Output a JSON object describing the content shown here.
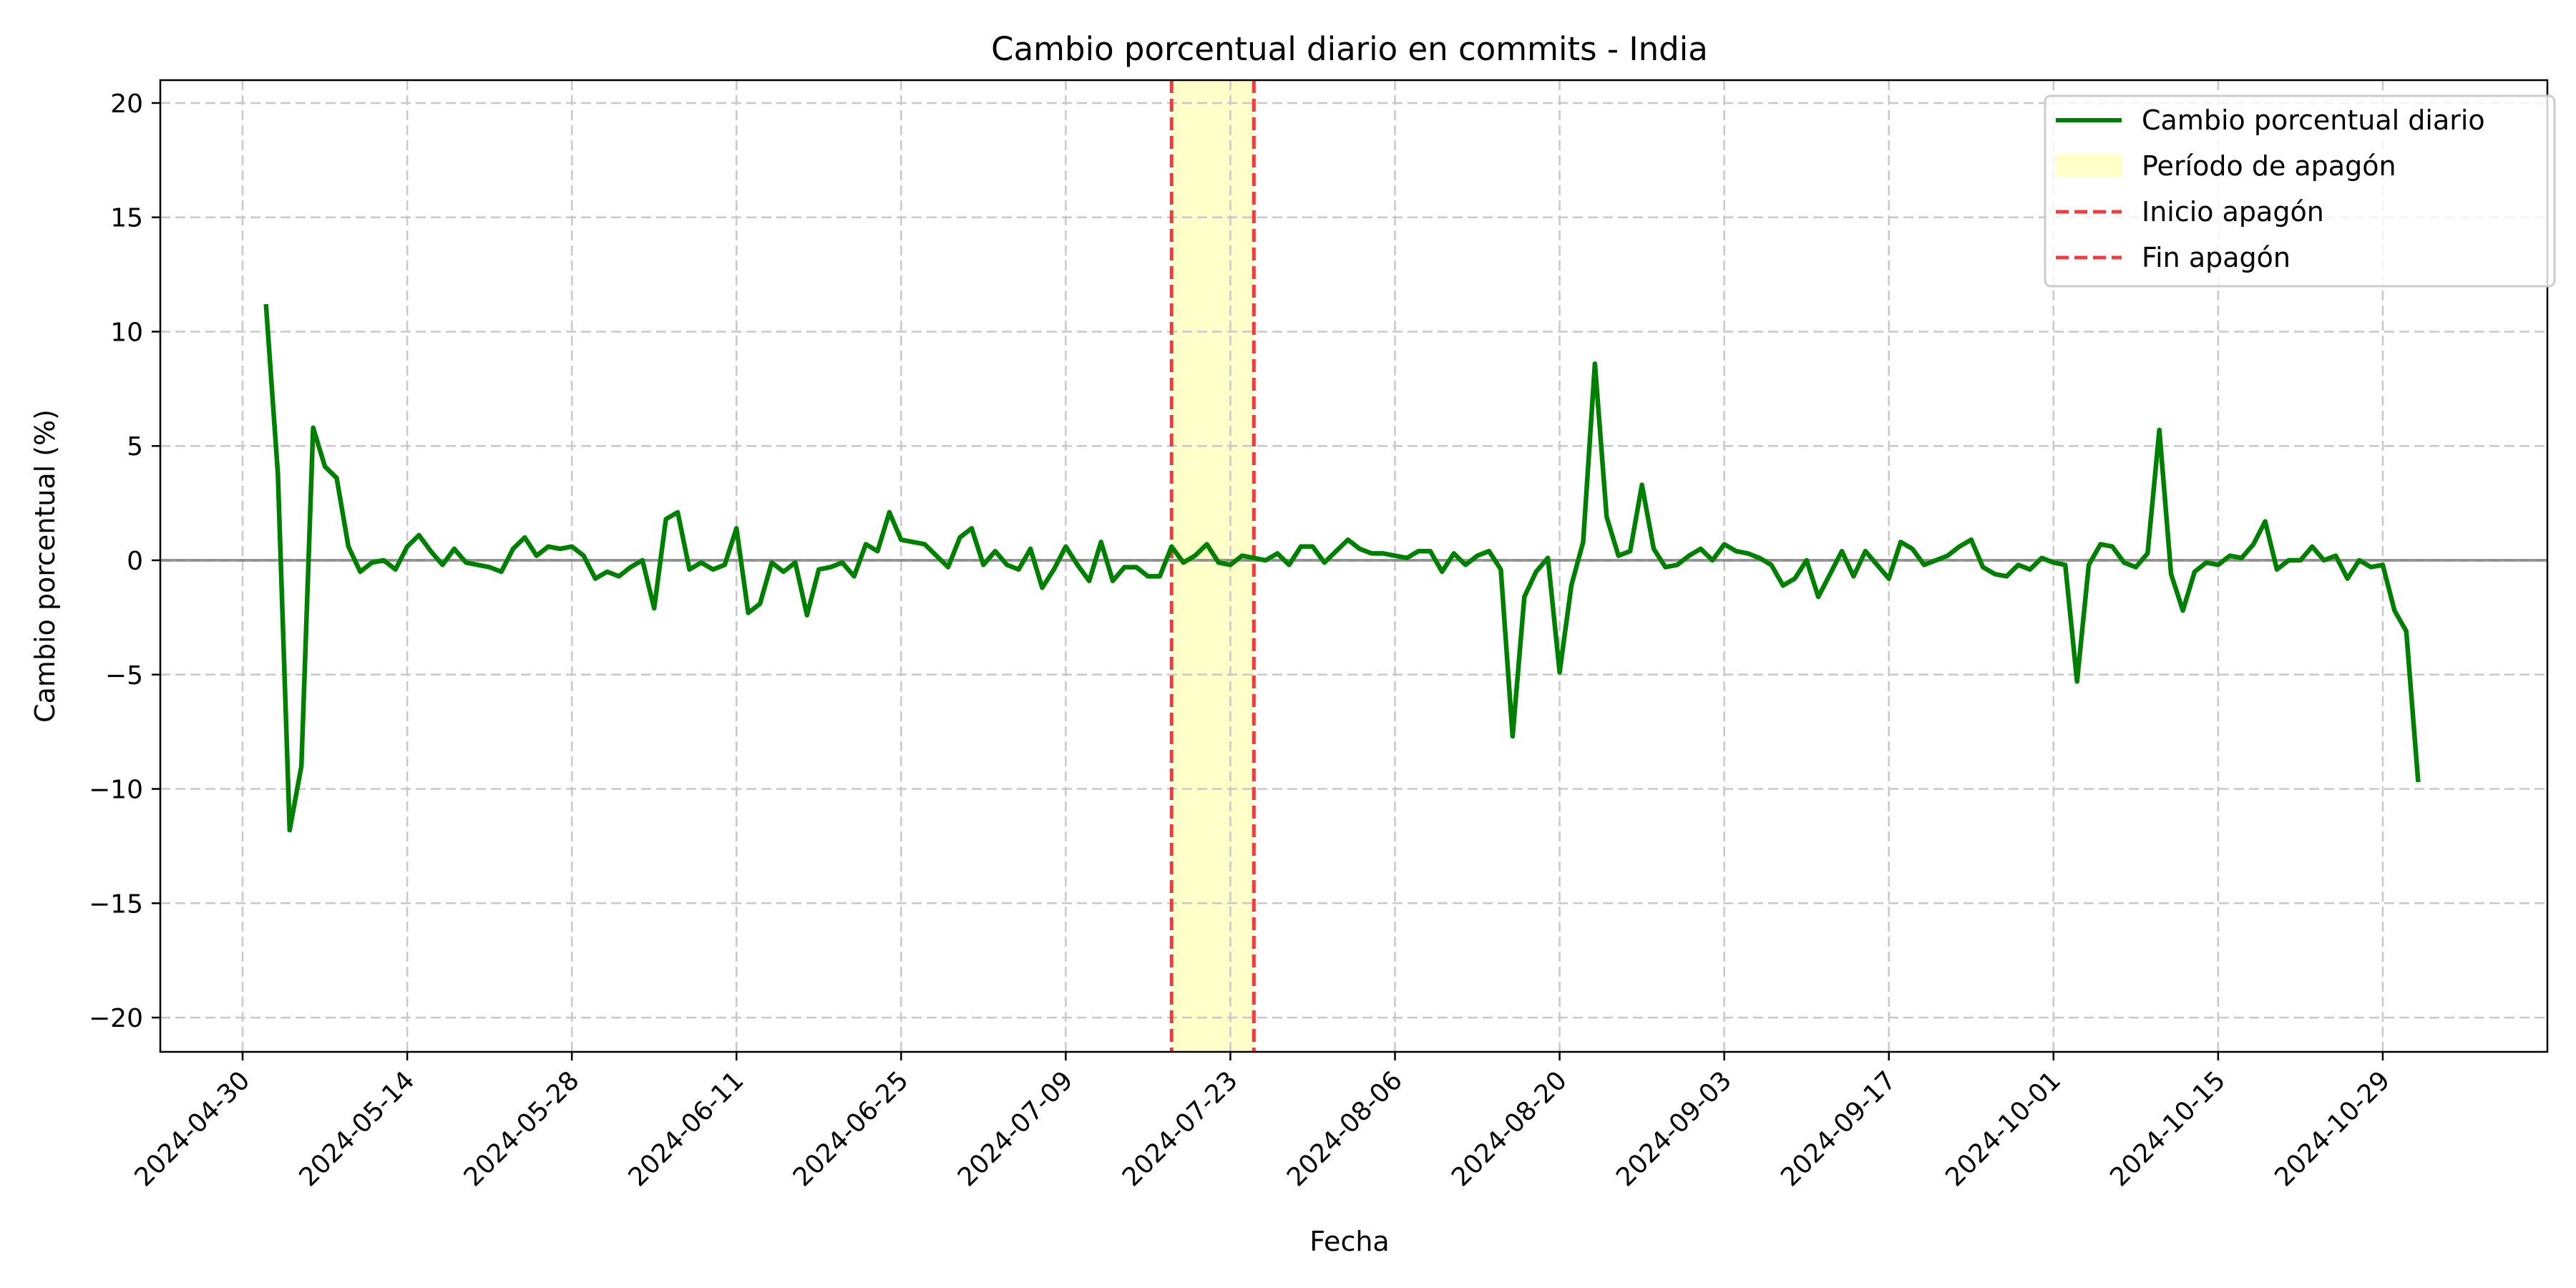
{
  "chart_data": {
    "type": "line",
    "title": "Cambio porcentual diario en commits - India",
    "xlabel": "Fecha",
    "ylabel": "Cambio porcentual (%)",
    "ylim": [
      -21.5,
      21
    ],
    "xlim": [
      "2024-04-23",
      "2024-11-12"
    ],
    "yticks": [
      -20,
      -15,
      -10,
      -5,
      0,
      5,
      10,
      15,
      20
    ],
    "ytick_labels": [
      "−20",
      "−15",
      "−10",
      "−5",
      "0",
      "5",
      "10",
      "15",
      "20"
    ],
    "xticks": [
      "2024-04-30",
      "2024-05-14",
      "2024-05-28",
      "2024-06-11",
      "2024-06-25",
      "2024-07-09",
      "2024-07-23",
      "2024-08-06",
      "2024-08-20",
      "2024-09-03",
      "2024-09-17",
      "2024-10-01",
      "2024-10-15",
      "2024-10-29"
    ],
    "grid": true,
    "legend_position": "top-right",
    "zero_line": 0,
    "colors": {
      "series": "#008000",
      "blackout_fill": "#ffffa6",
      "blackout_lines": "#f03c3c",
      "zero_line": "#808080",
      "grid": "#c8c8c8"
    },
    "blackout": {
      "start": "2024-07-18",
      "end": "2024-07-25"
    },
    "legend": {
      "line": "Cambio porcentual diario",
      "span": "Período de apagón",
      "start": "Inicio apagón",
      "end": "Fin apagón"
    },
    "series": [
      {
        "name": "Cambio porcentual diario",
        "x_start": "2024-05-02",
        "values": [
          11.1,
          3.8,
          -11.8,
          -9.0,
          5.8,
          4.1,
          3.6,
          0.6,
          -0.5,
          -0.1,
          0.0,
          -0.4,
          0.6,
          1.1,
          0.4,
          -0.2,
          0.5,
          -0.1,
          -0.2,
          -0.3,
          -0.5,
          0.5,
          1.0,
          0.2,
          0.6,
          0.5,
          0.6,
          0.2,
          -0.8,
          -0.5,
          -0.7,
          -0.3,
          0.0,
          -2.1,
          1.8,
          2.1,
          -0.4,
          -0.1,
          -0.4,
          -0.2,
          1.4,
          -2.3,
          -1.9,
          -0.1,
          -0.5,
          -0.1,
          -2.4,
          -0.4,
          -0.3,
          -0.1,
          -0.7,
          0.7,
          0.4,
          2.1,
          0.9,
          0.8,
          0.7,
          0.2,
          -0.3,
          1.0,
          1.4,
          -0.2,
          0.4,
          -0.2,
          -0.4,
          0.5,
          -1.2,
          -0.4,
          0.6,
          -0.2,
          -0.9,
          0.8,
          -0.9,
          -0.3,
          -0.3,
          -0.7,
          -0.7,
          0.6,
          -0.1,
          0.2,
          0.7,
          -0.1,
          -0.2,
          0.2,
          0.1,
          0.0,
          0.3,
          -0.2,
          0.6,
          0.6,
          -0.1,
          0.4,
          0.9,
          0.5,
          0.3,
          0.3,
          0.2,
          0.1,
          0.4,
          0.4,
          -0.5,
          0.3,
          -0.2,
          0.2,
          0.4,
          -0.4,
          -7.7,
          -1.6,
          -0.5,
          0.1,
          -4.9,
          -1.1,
          0.8,
          8.6,
          1.9,
          0.2,
          0.4,
          3.3,
          0.5,
          -0.3,
          -0.2,
          0.2,
          0.5,
          0.0,
          0.7,
          0.4,
          0.3,
          0.1,
          -0.2,
          -1.1,
          -0.8,
          0.0,
          -1.6,
          -0.6,
          0.4,
          -0.7,
          0.4,
          -0.2,
          -0.8,
          0.8,
          0.5,
          -0.2,
          0.0,
          0.2,
          0.6,
          0.9,
          -0.3,
          -0.6,
          -0.7,
          -0.2,
          -0.4,
          0.1,
          -0.1,
          -0.2,
          -5.3,
          -0.2,
          0.7,
          0.6,
          -0.1,
          -0.3,
          0.3,
          5.7,
          -0.6,
          -2.2,
          -0.5,
          -0.1,
          -0.2,
          0.2,
          0.1,
          0.7,
          1.7,
          -0.4,
          0.0,
          0.0,
          0.6,
          0.0,
          0.2,
          -0.8,
          0.0,
          -0.3,
          -0.2,
          -2.2,
          -3.1,
          -9.6
        ]
      }
    ]
  }
}
